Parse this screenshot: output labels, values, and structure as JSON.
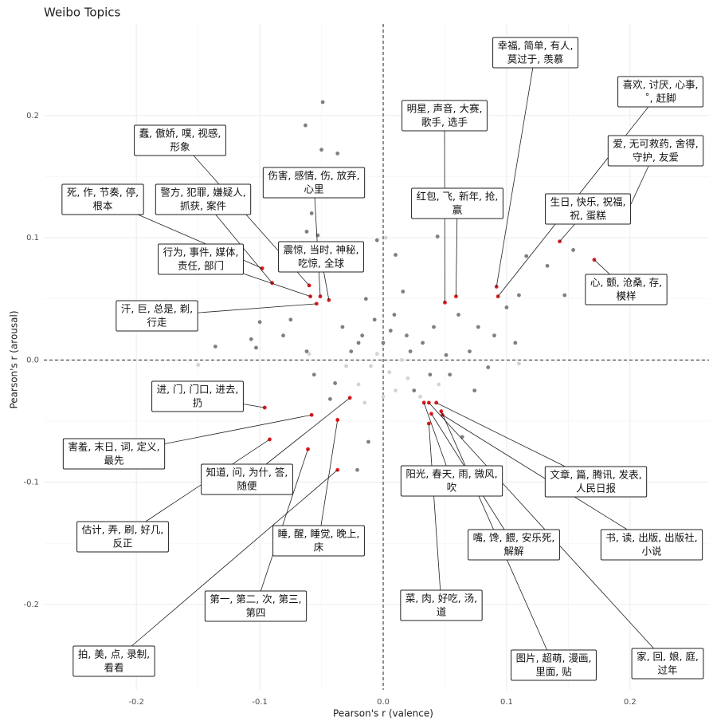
{
  "chart_data": {
    "type": "scatter",
    "title": "Weibo Topics",
    "x_label": "Pearson's r (valence)",
    "y_label": "Pearson's r (arousal)",
    "xlim": [
      -0.275,
      0.264
    ],
    "ylim": [
      -0.27,
      0.275
    ],
    "xticks": [
      -0.2,
      -0.1,
      {
        "value": 0,
        "label": "0.0"
      },
      0.1,
      0.2
    ],
    "yticks": [
      -0.2,
      -0.1,
      {
        "value": 0,
        "label": "0.0"
      },
      0.1,
      0.2
    ],
    "grid": true,
    "series": [
      {
        "color": "#7f7f7f",
        "x": [
          -0.049,
          -0.063,
          -0.05,
          -0.037,
          -0.058,
          -0.062,
          -0.053,
          -0.005,
          0.01,
          0.044,
          0.116,
          0.133,
          0.154,
          0.147,
          0.11,
          0.1,
          0.107,
          -0.136,
          -0.107,
          -0.103,
          -0.021,
          -0.012,
          0.064,
          0.074,
          0.085,
          -0.1,
          -0.081,
          -0.075,
          0.077,
          0.09,
          0.061,
          0.051,
          -0.056,
          -0.039,
          0.038,
          0.025,
          -0.017,
          0.019,
          -0.026,
          0.032,
          -0.007,
          0.009,
          -0.014,
          0.016,
          -0.033,
          0.041,
          0,
          -0.02,
          0.022,
          0.006,
          -0.062,
          0.07,
          -0.043,
          0.054
        ],
        "y": [
          0.211,
          0.192,
          0.172,
          0.169,
          0.12,
          0.105,
          0.102,
          0.098,
          0.086,
          0.101,
          0.085,
          0.077,
          0.09,
          0.053,
          0.053,
          0.043,
          0.014,
          0.011,
          0.017,
          0.01,
          -0.09,
          -0.067,
          -0.063,
          -0.025,
          -0.006,
          0.031,
          0.02,
          0.033,
          0.027,
          0.02,
          0.037,
          0.004,
          -0.012,
          -0.019,
          -0.012,
          -0.025,
          0.02,
          0.02,
          0.007,
          0.014,
          0.033,
          0.037,
          0.05,
          0.056,
          0.027,
          0.027,
          0.014,
          0.014,
          0.007,
          0.024,
          0.007,
          0.007,
          -0.032,
          -0.012
        ]
      },
      {
        "color": "#d3d3d3",
        "x": [
          -0.01,
          0.005,
          -0.02,
          0.015,
          -0.005,
          0.02,
          -0.03,
          0.01,
          0,
          -0.015,
          0.03,
          0.002,
          -0.15,
          0.11,
          -0.06,
          0.045
        ],
        "y": [
          -0.005,
          -0.01,
          -0.02,
          0,
          0.005,
          -0.015,
          -0.005,
          -0.025,
          -0.03,
          -0.035,
          -0.03,
          0.1,
          -0.004,
          -0.003,
          0.005,
          -0.02
        ]
      },
      {
        "color": "#e31a1c",
        "x": [
          0.0918,
          0.093,
          0.05,
          0.194,
          0.059,
          0.143,
          0.171,
          -0.06,
          -0.051,
          -0.098,
          -0.09,
          -0.059,
          -0.044,
          -0.054,
          -0.096,
          -0.058,
          -0.027,
          -0.092,
          -0.037,
          -0.061,
          -0.037,
          0.033,
          0.043,
          0.039,
          0.048,
          0.037,
          0.047,
          0.037
        ],
        "y": [
          0.06,
          0.052,
          0.047,
          0.113,
          0.052,
          0.097,
          0.082,
          0.061,
          0.052,
          0.075,
          0.063,
          0.052,
          0.049,
          0.046,
          -0.039,
          -0.045,
          -0.031,
          -0.065,
          -0.049,
          -0.073,
          -0.09,
          -0.035,
          -0.035,
          -0.044,
          -0.045,
          -0.052,
          -0.042,
          -0.035
        ],
        "labels": [
          [
            "幸福, 简单, 有人,",
            "莫过于, 羡慕"
          ],
          [
            "喜欢, 讨厌, 心事,",
            "˚, 赶脚"
          ],
          [
            "明星, 声音, 大赛,",
            "歌手, 选手"
          ],
          [
            "爱, 无可救药, 舍得,",
            "守护, 友爱"
          ],
          [
            "红包, 飞, 新年, 抢,",
            "赢"
          ],
          [
            "生日, 快乐, 祝福,",
            "祝, 蛋糕"
          ],
          [
            "心, 颤, 沧桑, 存,",
            "模样"
          ],
          [
            "蠢, 傲娇, 噗, 视感,",
            "形象"
          ],
          [
            "伤害, 感情, 伤, 放弃,",
            "心里"
          ],
          [
            "死, 作, 节奏, 停,",
            "根本"
          ],
          [
            "警方, 犯罪, 嫌疑人,",
            "抓获, 案件"
          ],
          [
            "行为, 事件, 媒体,",
            "责任, 部门"
          ],
          [
            "震惊, 当时, 神秘,",
            "吃惊, 全球"
          ],
          [
            "汗, 巨, 总是, 剃,",
            "行走"
          ],
          [
            "进, 门, 门口, 进去,",
            "扔"
          ],
          [
            "害羞, 末日, 词, 定义,",
            "最先"
          ],
          [
            "知道, 问, 为什, 答,",
            "随便"
          ],
          [
            "估计, 弄, 刷, 好几,",
            "反正"
          ],
          [
            "睡, 醒, 睡觉, 晚上,",
            "床"
          ],
          [
            "第一, 第二, 次, 第三,",
            "第四"
          ],
          [
            "拍, 美, 点, 录制,",
            "看看"
          ],
          [
            "阳光, 春天, 雨, 微风,",
            "吹"
          ],
          [
            "文章, 篇, 腾讯, 发表,",
            "人民日报"
          ],
          [
            "嘴, 馋, 餵, 安乐死,",
            "解解"
          ],
          [
            "书, 读, 出版, 出版社,",
            "小说"
          ],
          [
            "菜, 肉, 好吃, 汤,",
            "道"
          ],
          [
            "图片, 超萌, 漫画,",
            "里面, 贴"
          ],
          [
            "家, 回, 娘, 庭,",
            "过年"
          ]
        ]
      }
    ]
  }
}
